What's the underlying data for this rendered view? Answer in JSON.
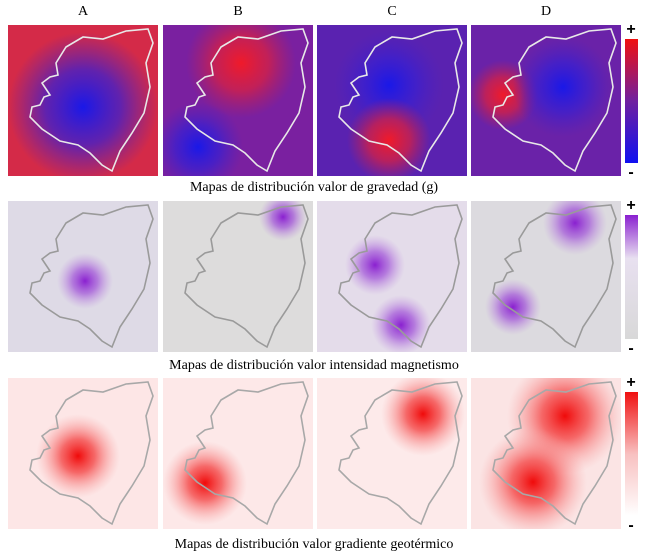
{
  "columns": [
    "A",
    "B",
    "C",
    "D"
  ],
  "rows": [
    {
      "caption": "Mapas de distribución valor de gravedad (g)",
      "scale_max": "+",
      "scale_min": "-"
    },
    {
      "caption": "Mapas de distribución valor intensidad magnetismo",
      "scale_max": "+",
      "scale_min": "-"
    },
    {
      "caption": "Mapas de distribución valor gradiente geotérmico",
      "scale_max": "+",
      "scale_min": "-"
    }
  ]
}
